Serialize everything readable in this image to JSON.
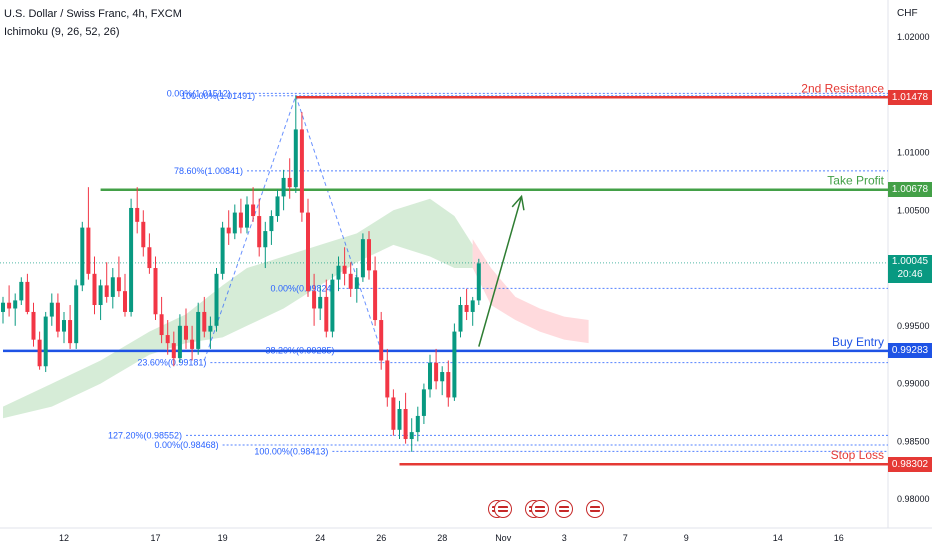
{
  "header": {
    "title": "U.S. Dollar / Swiss Franc, 4h, FXCM",
    "indicator": "Ichimoku (9, 26, 52, 26)",
    "currency": "CHF"
  },
  "colors": {
    "up": "#089981",
    "down": "#f23645",
    "resistance": "#e53935",
    "take_profit": "#43a047",
    "buy_entry": "#1e53e5",
    "fib": "#2962ff",
    "cloud_green": "#c8e6c9",
    "cloud_red": "#ffcdd2",
    "current": "#089981"
  },
  "chart_data": {
    "type": "candlestick",
    "y_axis": {
      "ticks": [
        "1.02000",
        "1.01000",
        "1.00500",
        "0.99500",
        "0.99000",
        "0.98500",
        "0.98000"
      ],
      "tick_values": [
        1.02,
        1.01,
        1.005,
        0.995,
        0.99,
        0.985,
        0.98
      ],
      "ylim": [
        0.9775,
        1.0232
      ]
    },
    "x_axis": {
      "ticks": [
        "12",
        "17",
        "19",
        "24",
        "26",
        "28",
        "Nov",
        "3",
        "7",
        "9",
        "14",
        "16"
      ],
      "tick_bars": [
        10,
        25,
        36,
        52,
        62,
        72,
        82,
        92,
        102,
        112,
        127,
        137
      ]
    },
    "levels": [
      {
        "name": "2nd Resistance",
        "value": 1.01478,
        "label": "1.01478",
        "color": "#e53935",
        "start_bar": 48
      },
      {
        "name": "Take Profit",
        "value": 1.00678,
        "label": "1.00678",
        "color": "#43a047",
        "start_bar": 16
      },
      {
        "name": "Buy Entry",
        "value": 0.99283,
        "label": "0.99283",
        "color": "#1e53e5",
        "start_bar": 0
      },
      {
        "name": "Stop Loss",
        "value": 0.98302,
        "label": "0.98302",
        "color": "#e53935",
        "start_bar": 65
      }
    ],
    "current_price": {
      "value": 1.00045,
      "label": "1.00045",
      "countdown": "20:46"
    },
    "fib_top": [
      {
        "label": "0.00%(1.01512)",
        "value": 1.01512
      },
      {
        "label": "100.00%(1.01491)",
        "value": 1.01491
      },
      {
        "label": "78.60%(1.00841)",
        "value": 1.00841
      },
      {
        "label": "0.00%(0.99824)",
        "value": 0.99824
      },
      {
        "label": "38.20%(0.99285)",
        "value": 0.99285
      },
      {
        "label": "23.60%(0.99181)",
        "value": 0.99181
      },
      {
        "label": "127.20%(0.98552)",
        "value": 0.98552
      },
      {
        "label": "0.00%(0.98468)",
        "value": 0.98468
      },
      {
        "label": "100.00%(0.98413)",
        "value": 0.98413
      }
    ],
    "candles": [
      [
        0.9962,
        0.9975,
        0.9952,
        0.997
      ],
      [
        0.997,
        0.9985,
        0.9958,
        0.9965
      ],
      [
        0.9965,
        0.9978,
        0.995,
        0.9972
      ],
      [
        0.9972,
        0.9992,
        0.9968,
        0.9988
      ],
      [
        0.9988,
        0.9995,
        0.996,
        0.9962
      ],
      [
        0.9962,
        0.997,
        0.9932,
        0.9938
      ],
      [
        0.9938,
        0.9945,
        0.9912,
        0.9915
      ],
      [
        0.9915,
        0.9962,
        0.991,
        0.9958
      ],
      [
        0.9958,
        0.9978,
        0.995,
        0.997
      ],
      [
        0.997,
        0.9978,
        0.994,
        0.9945
      ],
      [
        0.9945,
        0.9962,
        0.9935,
        0.9955
      ],
      [
        0.9955,
        0.9968,
        0.993,
        0.9935
      ],
      [
        0.9935,
        0.999,
        0.993,
        0.9985
      ],
      [
        0.9985,
        1.004,
        0.998,
        1.0035
      ],
      [
        1.0035,
        1.007,
        0.999,
        0.9995
      ],
      [
        0.9995,
        1.001,
        0.996,
        0.9968
      ],
      [
        0.9968,
        0.999,
        0.9955,
        0.9985
      ],
      [
        0.9985,
        1.0005,
        0.997,
        0.9975
      ],
      [
        0.9975,
        1.0,
        0.9965,
        0.9992
      ],
      [
        0.9992,
        1.001,
        0.9975,
        0.998
      ],
      [
        0.998,
        0.9995,
        0.9958,
        0.9962
      ],
      [
        0.9962,
        1.006,
        0.9958,
        1.0052
      ],
      [
        1.0052,
        1.007,
        1.003,
        1.004
      ],
      [
        1.004,
        1.005,
        1.001,
        1.0018
      ],
      [
        1.0018,
        1.003,
        0.9995,
        1.0
      ],
      [
        1.0,
        1.001,
        0.9955,
        0.996
      ],
      [
        0.996,
        0.9975,
        0.9935,
        0.9942
      ],
      [
        0.9942,
        0.9955,
        0.9925,
        0.9935
      ],
      [
        0.9935,
        0.9945,
        0.9915,
        0.9922
      ],
      [
        0.9922,
        0.996,
        0.9918,
        0.995
      ],
      [
        0.995,
        0.9965,
        0.993,
        0.9938
      ],
      [
        0.9938,
        0.995,
        0.992,
        0.993
      ],
      [
        0.993,
        0.997,
        0.9925,
        0.9962
      ],
      [
        0.9962,
        0.9975,
        0.994,
        0.9945
      ],
      [
        0.9945,
        0.9958,
        0.993,
        0.995
      ],
      [
        0.995,
        1.0,
        0.9945,
        0.9995
      ],
      [
        0.9995,
        1.004,
        0.999,
        1.0035
      ],
      [
        1.0035,
        1.005,
        1.002,
        1.003
      ],
      [
        1.003,
        1.0055,
        1.0025,
        1.0048
      ],
      [
        1.0048,
        1.006,
        1.003,
        1.0035
      ],
      [
        1.0035,
        1.0062,
        1.003,
        1.0055
      ],
      [
        1.0055,
        1.007,
        1.004,
        1.0045
      ],
      [
        1.0045,
        1.006,
        1.001,
        1.0018
      ],
      [
        1.0018,
        1.004,
        1.0,
        1.0032
      ],
      [
        1.0032,
        1.005,
        1.002,
        1.0045
      ],
      [
        1.0045,
        1.0068,
        1.004,
        1.0062
      ],
      [
        1.0062,
        1.0085,
        1.005,
        1.0078
      ],
      [
        1.0078,
        1.0095,
        1.006,
        1.007
      ],
      [
        1.007,
        1.0149,
        1.0065,
        1.012
      ],
      [
        1.012,
        1.0135,
        1.004,
        1.0048
      ],
      [
        1.0048,
        1.006,
        0.9975,
        0.998
      ],
      [
        0.998,
        0.9995,
        0.995,
        0.9965
      ],
      [
        0.9965,
        0.9985,
        0.9955,
        0.9975
      ],
      [
        0.9975,
        0.999,
        0.994,
        0.9945
      ],
      [
        0.9945,
        0.9995,
        0.994,
        0.999
      ],
      [
        0.999,
        1.001,
        0.998,
        1.0002
      ],
      [
        1.0002,
        1.0018,
        0.9985,
        0.9995
      ],
      [
        0.9995,
        1.0005,
        0.9975,
        0.9982
      ],
      [
        0.9982,
        1.0,
        0.997,
        0.9992
      ],
      [
        0.9992,
        1.003,
        0.9988,
        1.0025
      ],
      [
        1.0025,
        1.0032,
        0.999,
        0.9998
      ],
      [
        0.9998,
        1.001,
        0.995,
        0.9955
      ],
      [
        0.9955,
        0.9962,
        0.9912,
        0.992
      ],
      [
        0.992,
        0.993,
        0.988,
        0.9888
      ],
      [
        0.9888,
        0.9895,
        0.9855,
        0.986
      ],
      [
        0.986,
        0.9885,
        0.9852,
        0.9878
      ],
      [
        0.9878,
        0.9892,
        0.9848,
        0.9852
      ],
      [
        0.9852,
        0.987,
        0.9841,
        0.9858
      ],
      [
        0.9858,
        0.988,
        0.985,
        0.9872
      ],
      [
        0.9872,
        0.99,
        0.9865,
        0.9895
      ],
      [
        0.9895,
        0.9925,
        0.9888,
        0.9918
      ],
      [
        0.9918,
        0.993,
        0.9895,
        0.9902
      ],
      [
        0.9902,
        0.9915,
        0.989,
        0.991
      ],
      [
        0.991,
        0.992,
        0.988,
        0.9888
      ],
      [
        0.9888,
        0.9952,
        0.9885,
        0.9945
      ],
      [
        0.9945,
        0.9975,
        0.994,
        0.9968
      ],
      [
        0.9968,
        0.9982,
        0.9955,
        0.9962
      ],
      [
        0.9962,
        0.9975,
        0.995,
        0.9972
      ],
      [
        0.9972,
        1.0008,
        0.9968,
        1.0004
      ]
    ],
    "cloud_green": [
      [
        0,
        0.988,
        0.987
      ],
      [
        8,
        0.99,
        0.988
      ],
      [
        16,
        0.992,
        0.99
      ],
      [
        24,
        0.9945,
        0.9925
      ],
      [
        30,
        0.996,
        0.9935
      ],
      [
        36,
        0.9985,
        0.994
      ],
      [
        40,
        1.0,
        0.995
      ],
      [
        46,
        1.001,
        0.9965
      ],
      [
        52,
        1.002,
        0.9985
      ],
      [
        58,
        1.003,
        1.0005
      ],
      [
        64,
        1.005,
        1.002
      ],
      [
        70,
        1.006,
        1.001
      ],
      [
        74,
        1.0045,
        1.0
      ],
      [
        77,
        1.002,
        1.0
      ]
    ],
    "cloud_red": [
      [
        77,
        1.0025,
        1.0
      ],
      [
        80,
        1.0,
        0.9968
      ],
      [
        84,
        0.9975,
        0.9955
      ],
      [
        88,
        0.9965,
        0.9945
      ],
      [
        92,
        0.9958,
        0.9938
      ],
      [
        96,
        0.9955,
        0.9935
      ]
    ],
    "arrow": {
      "from": [
        78,
        0.9932
      ],
      "to": [
        85,
        1.0062
      ]
    }
  },
  "flags": [
    {
      "name": "us-event-flag-1",
      "bar": 81
    },
    {
      "name": "us-event-flag-2",
      "bar": 82
    },
    {
      "name": "us-event-flag-3",
      "bar": 87
    },
    {
      "name": "us-event-flag-4",
      "bar": 88
    },
    {
      "name": "us-event-flag-5",
      "bar": 92
    },
    {
      "name": "us-event-flag-6",
      "bar": 97
    }
  ]
}
